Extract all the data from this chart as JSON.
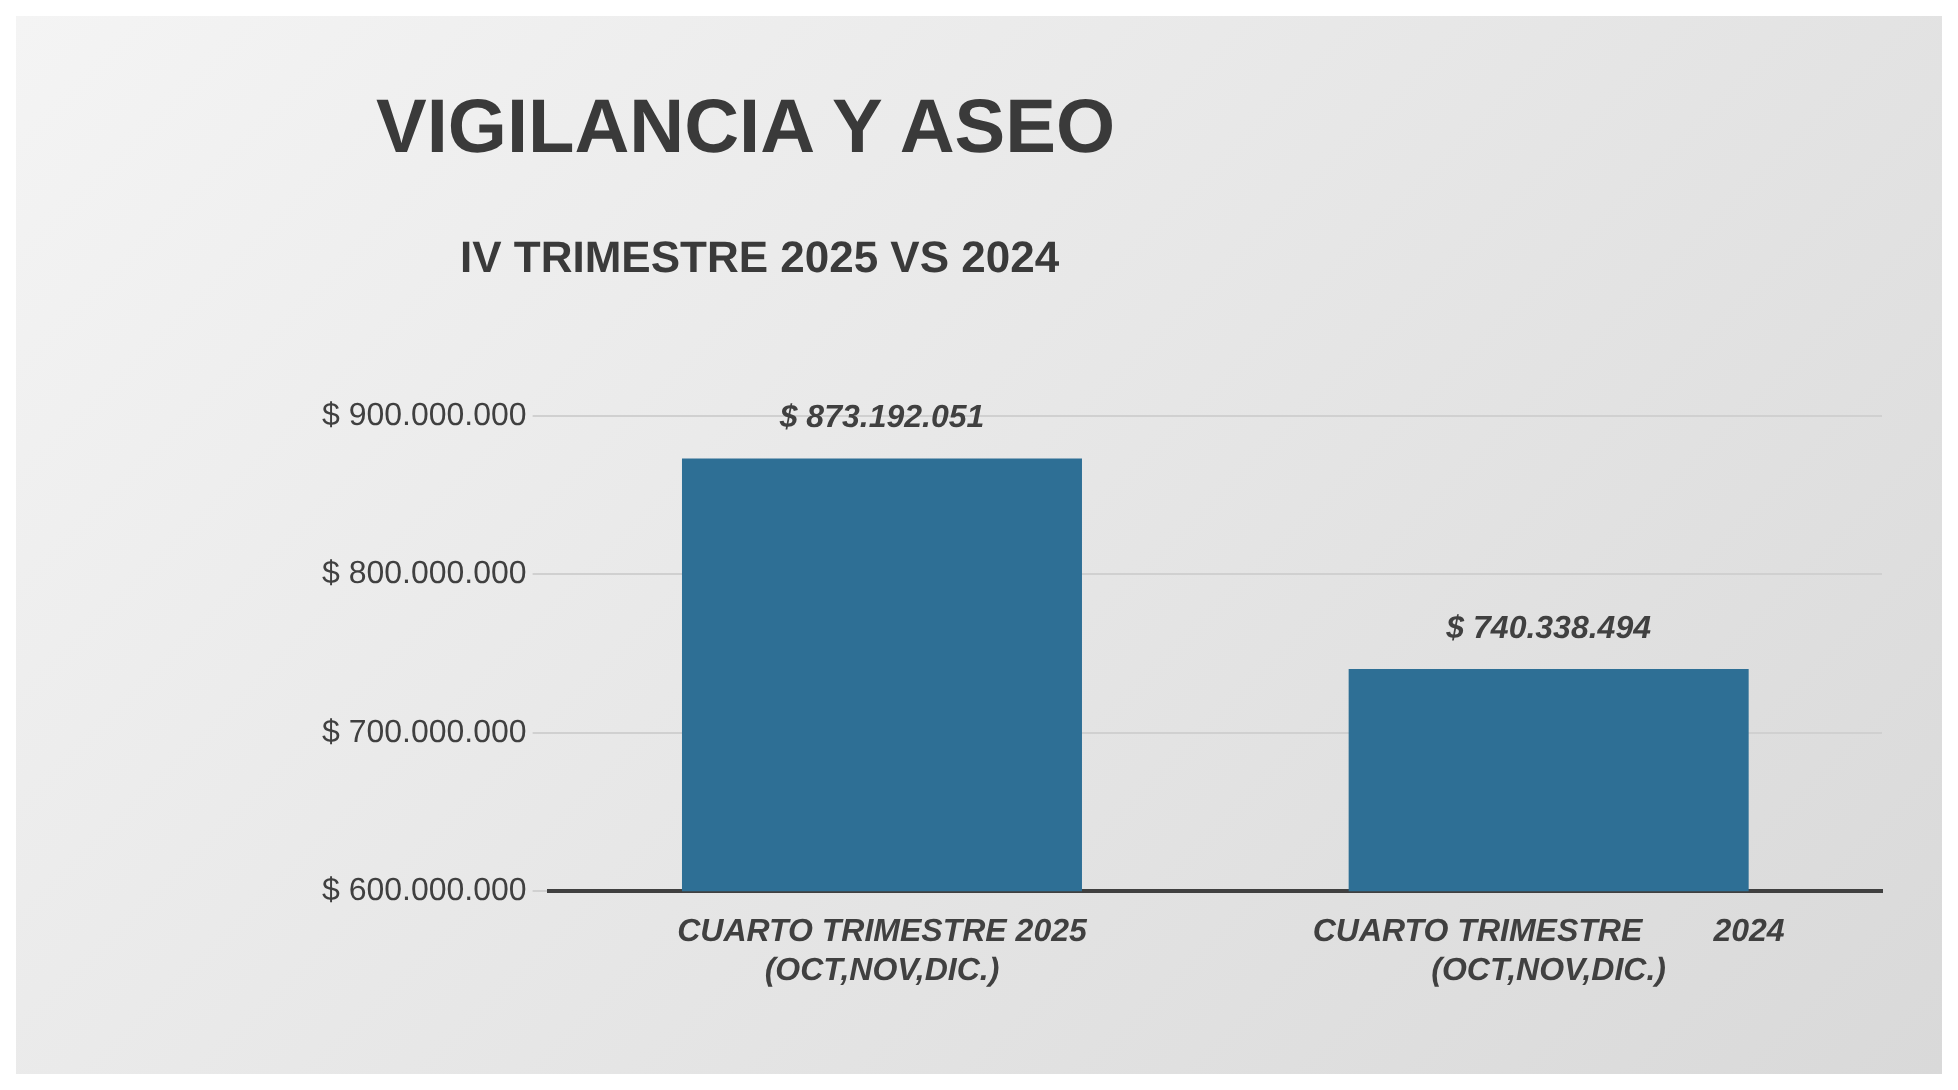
{
  "chart_data": {
    "type": "bar",
    "title": "VIGILANCIA Y ASEO",
    "subtitle": "IV TRIMESTRE 2025 VS 2024",
    "categories": [
      "CUARTO TRIMESTRE 2025\n(OCT,NOV,DIC.)",
      "CUARTO TRIMESTRE        2024\n(OCT,NOV,DIC.)"
    ],
    "values": [
      873192051,
      740338494
    ],
    "value_labels": [
      "$ 873.192.051",
      "$ 740.338.494"
    ],
    "color": "#2e6f95",
    "ylim": [
      600000000,
      900000000
    ],
    "yticks": [
      {
        "value": 600000000,
        "label": "$ 600.000.000"
      },
      {
        "value": 700000000,
        "label": "$ 700.000.000"
      },
      {
        "value": 800000000,
        "label": "$ 800.000.000"
      },
      {
        "value": 900000000,
        "label": "$ 900.000.000"
      }
    ],
    "grid": "y",
    "legend": false
  }
}
